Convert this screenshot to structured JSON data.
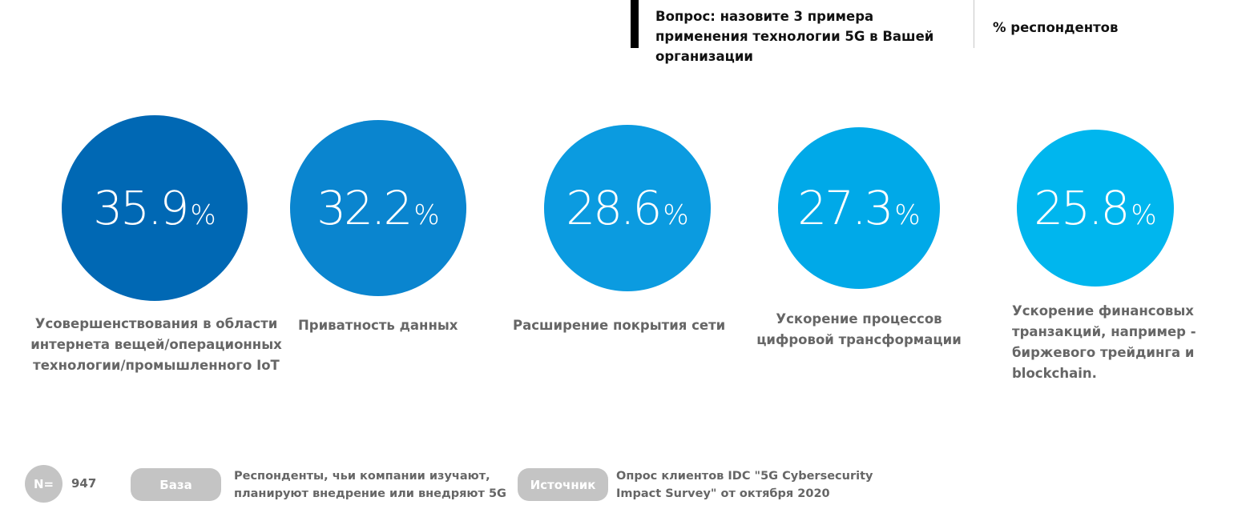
{
  "header": {
    "question": "Вопрос: назовите 3 примера применения технологии 5G в Вашей организации",
    "unit": "% респондентов"
  },
  "chart_data": {
    "type": "bubble",
    "categories": [
      "Усовершенствования в области интернета вещей/операционных технологии/промышленного IoT",
      "Приватность данных",
      "Расширение покрытия сети",
      "Ускорение процессов цифровой трансформации",
      "Ускорение финансовых транзакций, например - биржевого трейдинга и blockchain."
    ],
    "values": [
      35.9,
      32.2,
      28.6,
      27.3,
      25.8
    ],
    "value_labels": [
      "35.9",
      "32.2",
      "28.6",
      "27.3",
      "25.8"
    ],
    "percent_sign": "%",
    "colors": [
      "#0068b4",
      "#0a85cf",
      "#0b9be0",
      "#00a9e8",
      "#00b6ee"
    ]
  },
  "footer": {
    "n_label": "N=",
    "n_value": "947",
    "base_label": "База",
    "base_text": "Респонденты, чьи компании изучают, планируют внедрение или внедряют 5G",
    "source_label": "Источник",
    "source_text": "Опрос клиентов IDC \"5G Cybersecurity Impact Survey\" от октября 2020"
  }
}
